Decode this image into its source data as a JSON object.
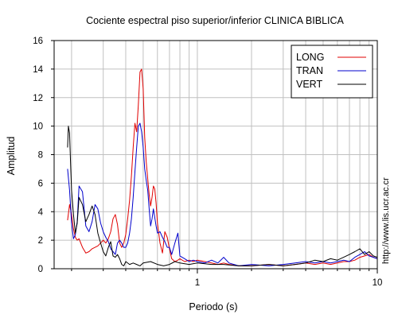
{
  "chart_data": {
    "type": "line",
    "title": "Cociente espectral piso superior/inferior  CLINICA BIBLICA",
    "xlabel": "Periodo (s)",
    "ylabel": "Amplitud",
    "xscale": "log",
    "xlim": [
      0.16,
      10
    ],
    "ylim": [
      0,
      16
    ],
    "yticks": [
      0,
      2,
      4,
      6,
      8,
      10,
      12,
      14,
      16
    ],
    "xtick_labels": [
      {
        "value": 1,
        "label": "1"
      },
      {
        "value": 10,
        "label": "10"
      }
    ],
    "x_grid": [
      0.2,
      0.3,
      0.4,
      0.5,
      0.6,
      0.7,
      0.8,
      0.9,
      1,
      2,
      3,
      4,
      5,
      6,
      7,
      8,
      9,
      10
    ],
    "grid": true,
    "legend_position": "top-right",
    "side_note": "http://www.lis.ucr.ac.cr",
    "series": [
      {
        "name": "LONG",
        "color": "#e00000",
        "x": [
          0.19,
          0.195,
          0.2,
          0.205,
          0.21,
          0.215,
          0.22,
          0.23,
          0.24,
          0.25,
          0.26,
          0.27,
          0.28,
          0.29,
          0.3,
          0.31,
          0.32,
          0.33,
          0.34,
          0.35,
          0.36,
          0.37,
          0.38,
          0.39,
          0.4,
          0.41,
          0.42,
          0.43,
          0.44,
          0.45,
          0.46,
          0.47,
          0.48,
          0.49,
          0.5,
          0.51,
          0.52,
          0.53,
          0.54,
          0.55,
          0.56,
          0.57,
          0.58,
          0.59,
          0.6,
          0.62,
          0.64,
          0.66,
          0.68,
          0.7,
          0.72,
          0.75,
          0.78,
          0.8,
          0.85,
          0.9,
          0.95,
          1.0,
          1.1,
          1.2,
          1.3,
          1.4,
          1.5,
          1.7,
          2.0,
          2.5,
          3.0,
          3.5,
          4.0,
          4.5,
          5.0,
          5.5,
          6.0,
          6.5,
          7.0,
          7.5,
          8.0,
          8.5,
          9.0,
          9.5,
          10.0
        ],
        "y": [
          3.4,
          4.5,
          3.8,
          2.8,
          2.2,
          2.0,
          2.1,
          1.5,
          1.1,
          1.2,
          1.4,
          1.5,
          1.6,
          1.8,
          2.0,
          1.8,
          2.1,
          2.6,
          3.5,
          3.8,
          3.1,
          1.8,
          1.5,
          1.8,
          2.4,
          3.5,
          4.8,
          6.5,
          8.5,
          10.2,
          9.6,
          11.5,
          13.8,
          14.0,
          12.6,
          9.2,
          7.5,
          6.3,
          5.2,
          4.4,
          5.0,
          5.8,
          5.6,
          4.6,
          3.2,
          1.8,
          1.1,
          2.6,
          2.2,
          1.4,
          0.7,
          0.5,
          0.6,
          0.7,
          0.5,
          0.6,
          0.5,
          0.6,
          0.5,
          0.4,
          0.3,
          0.4,
          0.3,
          0.2,
          0.2,
          0.3,
          0.2,
          0.3,
          0.4,
          0.3,
          0.4,
          0.3,
          0.4,
          0.5,
          0.5,
          0.6,
          0.8,
          0.9,
          1.0,
          0.8,
          0.7
        ]
      },
      {
        "name": "TRAN",
        "color": "#0000cc",
        "x": [
          0.19,
          0.195,
          0.2,
          0.205,
          0.21,
          0.215,
          0.22,
          0.23,
          0.24,
          0.25,
          0.26,
          0.27,
          0.28,
          0.29,
          0.3,
          0.31,
          0.32,
          0.33,
          0.34,
          0.35,
          0.36,
          0.37,
          0.38,
          0.39,
          0.4,
          0.41,
          0.42,
          0.43,
          0.44,
          0.45,
          0.46,
          0.47,
          0.48,
          0.49,
          0.5,
          0.51,
          0.52,
          0.53,
          0.54,
          0.55,
          0.56,
          0.57,
          0.58,
          0.59,
          0.6,
          0.62,
          0.64,
          0.66,
          0.68,
          0.7,
          0.72,
          0.75,
          0.78,
          0.8,
          0.85,
          0.9,
          0.95,
          1.0,
          1.1,
          1.2,
          1.3,
          1.4,
          1.5,
          1.7,
          2.0,
          2.5,
          3.0,
          3.5,
          4.0,
          4.5,
          5.0,
          5.5,
          6.0,
          6.5,
          7.0,
          7.5,
          8.0,
          8.5,
          9.0,
          9.5,
          10.0
        ],
        "y": [
          7.0,
          5.5,
          3.2,
          2.1,
          2.4,
          3.3,
          5.8,
          5.4,
          3.0,
          2.6,
          3.3,
          4.5,
          4.2,
          3.2,
          2.6,
          2.2,
          1.9,
          1.4,
          1.2,
          1.0,
          1.8,
          2.0,
          1.8,
          1.5,
          1.5,
          1.8,
          2.5,
          3.5,
          5.0,
          6.8,
          8.5,
          10.0,
          10.2,
          9.6,
          8.5,
          7.0,
          6.2,
          5.5,
          4.2,
          3.0,
          3.5,
          4.2,
          3.6,
          3.0,
          2.5,
          2.6,
          2.2,
          1.9,
          1.5,
          1.5,
          1.0,
          1.8,
          2.5,
          0.9,
          0.7,
          0.5,
          0.6,
          0.5,
          0.4,
          0.6,
          0.4,
          0.8,
          0.4,
          0.2,
          0.3,
          0.2,
          0.3,
          0.4,
          0.5,
          0.4,
          0.5,
          0.4,
          0.5,
          0.6,
          0.5,
          0.8,
          1.0,
          1.2,
          0.9,
          0.8,
          0.7
        ]
      },
      {
        "name": "VERT",
        "color": "#000000",
        "x": [
          0.19,
          0.192,
          0.195,
          0.198,
          0.2,
          0.205,
          0.21,
          0.215,
          0.22,
          0.23,
          0.24,
          0.25,
          0.26,
          0.27,
          0.28,
          0.29,
          0.3,
          0.31,
          0.32,
          0.33,
          0.34,
          0.35,
          0.36,
          0.37,
          0.38,
          0.39,
          0.4,
          0.42,
          0.44,
          0.46,
          0.48,
          0.5,
          0.55,
          0.6,
          0.65,
          0.7,
          0.75,
          0.8,
          0.9,
          1.0,
          1.2,
          1.4,
          1.7,
          2.0,
          2.5,
          3.0,
          3.5,
          4.0,
          4.5,
          5.0,
          5.5,
          6.0,
          6.5,
          7.0,
          7.5,
          8.0,
          8.5,
          9.0,
          9.5,
          10.0
        ],
        "y": [
          8.5,
          10.0,
          9.5,
          7.0,
          5.5,
          3.8,
          2.5,
          3.2,
          5.0,
          4.5,
          3.3,
          3.8,
          4.4,
          3.8,
          2.5,
          1.8,
          1.2,
          0.9,
          1.5,
          1.9,
          0.9,
          0.8,
          1.0,
          0.7,
          0.3,
          0.2,
          0.5,
          0.3,
          0.4,
          0.3,
          0.2,
          0.4,
          0.5,
          0.3,
          0.2,
          0.3,
          0.5,
          0.4,
          0.3,
          0.4,
          0.3,
          0.3,
          0.2,
          0.2,
          0.3,
          0.2,
          0.3,
          0.4,
          0.6,
          0.5,
          0.7,
          0.6,
          0.8,
          1.0,
          1.2,
          1.4,
          1.0,
          1.2,
          0.9,
          0.8
        ]
      }
    ]
  }
}
